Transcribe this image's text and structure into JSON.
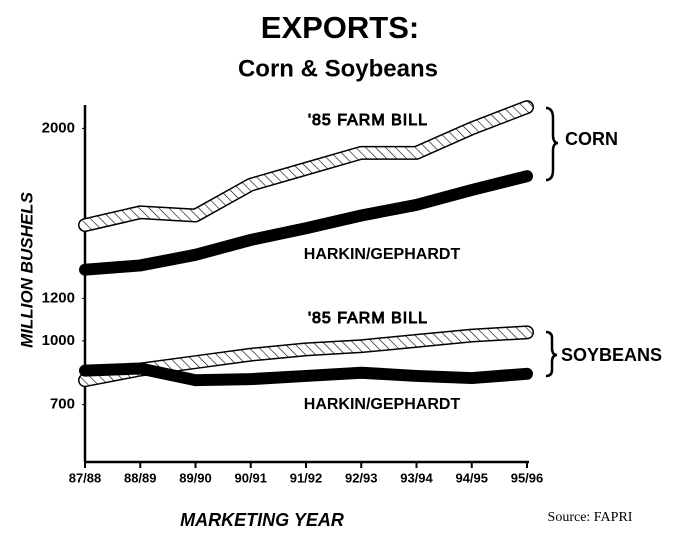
{
  "chart_data": {
    "type": "line",
    "title": "EXPORTS:",
    "subtitle": "Corn & Soybeans",
    "y_label": "MILLION BUSHELS",
    "x_label": "MARKETING YEAR",
    "source": "Source: FAPRI",
    "categories": [
      "87/88",
      "88/89",
      "89/90",
      "90/91",
      "91/92",
      "92/93",
      "93/94",
      "94/95",
      "95/96"
    ],
    "ylim": [
      430,
      2110
    ],
    "yticks": [
      700,
      1000,
      1200,
      2000
    ],
    "groups": [
      "CORN",
      "SOYBEANS"
    ],
    "series": [
      {
        "name": "'85 FARM BILL",
        "style": "hatched",
        "color": "#000000",
        "values": [
          1545,
          1605,
          1590,
          1735,
          1810,
          1885,
          1885,
          2000,
          2100
        ]
      },
      {
        "name": "HARKIN/GEPHARDT",
        "style": "solid",
        "color": "#000000",
        "values": [
          1335,
          1355,
          1405,
          1475,
          1530,
          1590,
          1640,
          1710,
          1775
        ]
      },
      {
        "name": "'85 FARM BILL",
        "style": "hatched",
        "color": "#000000",
        "values": [
          815,
          865,
          900,
          935,
          960,
          975,
          1000,
          1025,
          1040
        ]
      },
      {
        "name": "HARKIN/GEPHARDT",
        "style": "solid",
        "color": "#000000",
        "values": [
          860,
          870,
          815,
          820,
          835,
          850,
          835,
          825,
          845
        ]
      }
    ]
  }
}
